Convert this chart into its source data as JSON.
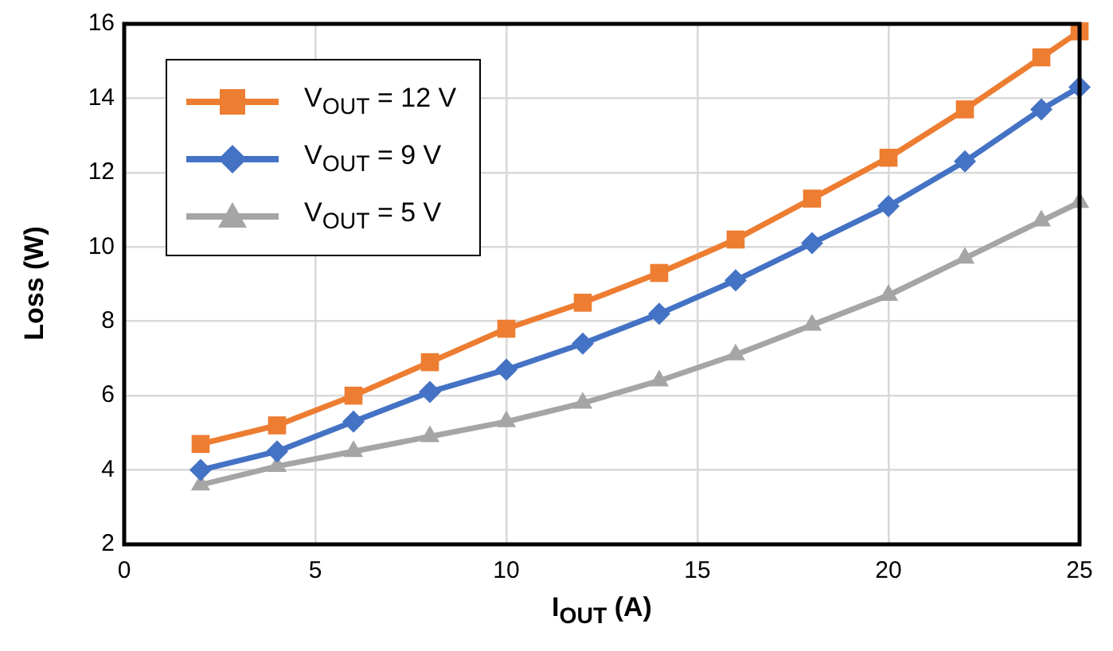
{
  "chart_data": {
    "type": "line",
    "xlabel": "I$_{OUT}$ (A)",
    "ylabel": "Loss (W)",
    "x": [
      2,
      4,
      6,
      8,
      10,
      12,
      14,
      16,
      18,
      20,
      22,
      24,
      25
    ],
    "xlim": [
      0,
      25
    ],
    "xticks": [
      0,
      5,
      10,
      15,
      20,
      25
    ],
    "ylim": [
      2,
      16
    ],
    "yticks": [
      2,
      4,
      6,
      8,
      10,
      12,
      14,
      16
    ],
    "grid": true,
    "legend": "top left",
    "line_style": "solid",
    "series": [
      {
        "name": "V$_{OUT}$ = 12 V",
        "color": "#ed7d31",
        "marker": "square",
        "values": [
          4.7,
          5.2,
          6.0,
          6.9,
          7.8,
          8.5,
          9.3,
          10.2,
          11.3,
          12.4,
          13.7,
          15.1,
          15.8
        ]
      },
      {
        "name": "V$_{OUT}$ = 9 V",
        "color": "#4472c4",
        "marker": "diamond",
        "values": [
          4.0,
          4.5,
          5.3,
          6.1,
          6.7,
          7.4,
          8.2,
          9.1,
          10.1,
          11.1,
          12.3,
          13.7,
          14.3
        ]
      },
      {
        "name": "V$_{OUT}$ = 5 V",
        "color": "#a5a5a5",
        "marker": "triangle",
        "values": [
          3.6,
          4.1,
          4.5,
          4.9,
          5.3,
          5.8,
          6.4,
          7.1,
          7.9,
          8.7,
          9.7,
          10.7,
          11.2
        ]
      }
    ]
  }
}
